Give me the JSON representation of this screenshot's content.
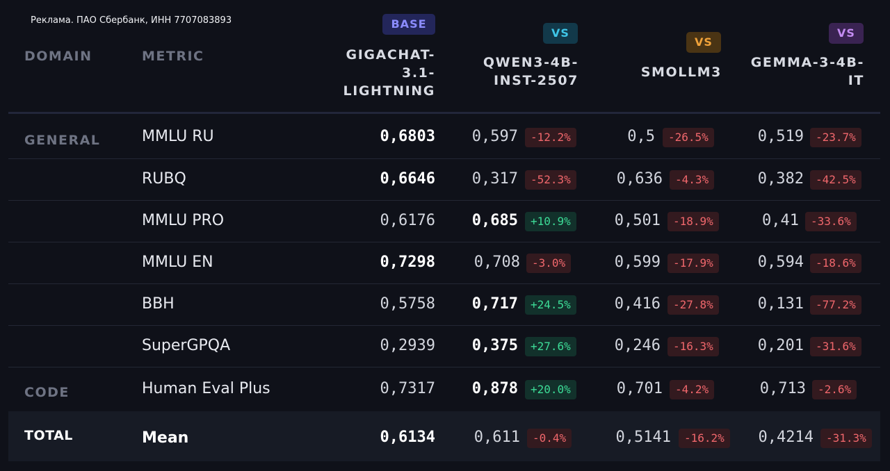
{
  "ad_text": "Реклама. ПАО Сбербанк, ИНН 7707083893",
  "headers": {
    "domain": "DOMAIN",
    "metric": "METRIC"
  },
  "models": [
    {
      "badge": "BASE",
      "line1": "GIGACHAT-",
      "line2": "3.1-",
      "line3": "LIGHTNING"
    },
    {
      "badge": "VS",
      "line1": "QWEN3-4B-",
      "line2": "INST-2507"
    },
    {
      "badge": "VS",
      "line1": "SMOLLM3"
    },
    {
      "badge": "VS",
      "line1": "GEMMA-3-4B-",
      "line2": "IT"
    }
  ],
  "domains": {
    "general": "GENERAL",
    "code": "CODE",
    "total": "TOTAL"
  },
  "rows": [
    {
      "metric": "MMLU RU",
      "base": "0,6803",
      "qwen": "0,597",
      "qwen_d": "-12.2%",
      "smol": "0,5",
      "smol_d": "-26.5%",
      "gemma": "0,519",
      "gemma_d": "-23.7%"
    },
    {
      "metric": "RUBQ",
      "base": "0,6646",
      "qwen": "0,317",
      "qwen_d": "-52.3%",
      "smol": "0,636",
      "smol_d": "-4.3%",
      "gemma": "0,382",
      "gemma_d": "-42.5%"
    },
    {
      "metric": "MMLU PRO",
      "base": "0,6176",
      "qwen": "0,685",
      "qwen_d": "+10.9%",
      "smol": "0,501",
      "smol_d": "-18.9%",
      "gemma": "0,41",
      "gemma_d": "-33.6%"
    },
    {
      "metric": "MMLU EN",
      "base": "0,7298",
      "qwen": "0,708",
      "qwen_d": "-3.0%",
      "smol": "0,599",
      "smol_d": "-17.9%",
      "gemma": "0,594",
      "gemma_d": "-18.6%"
    },
    {
      "metric": "BBH",
      "base": "0,5758",
      "qwen": "0,717",
      "qwen_d": "+24.5%",
      "smol": "0,416",
      "smol_d": "-27.8%",
      "gemma": "0,131",
      "gemma_d": "-77.2%"
    },
    {
      "metric": "SuperGPQA",
      "base": "0,2939",
      "qwen": "0,375",
      "qwen_d": "+27.6%",
      "smol": "0,246",
      "smol_d": "-16.3%",
      "gemma": "0,201",
      "gemma_d": "-31.6%"
    },
    {
      "metric": "Human Eval Plus",
      "base": "0,7317",
      "qwen": "0,878",
      "qwen_d": "+20.0%",
      "smol": "0,701",
      "smol_d": "-4.2%",
      "gemma": "0,713",
      "gemma_d": "-2.6%"
    }
  ],
  "total": {
    "metric": "Mean",
    "base": "0,6134",
    "qwen": "0,611",
    "qwen_d": "-0.4%",
    "smol": "0,5141",
    "smol_d": "-16.2%",
    "gemma": "0,4214",
    "gemma_d": "-31.3%"
  },
  "colors": {
    "background": "#0f1119",
    "negative": "#f0676c",
    "positive": "#3ddc97",
    "base_badge": "#8b8cff",
    "qwen_badge": "#3fc6e8",
    "smol_badge": "#f0a23a",
    "gemma_badge": "#c48cf2"
  }
}
